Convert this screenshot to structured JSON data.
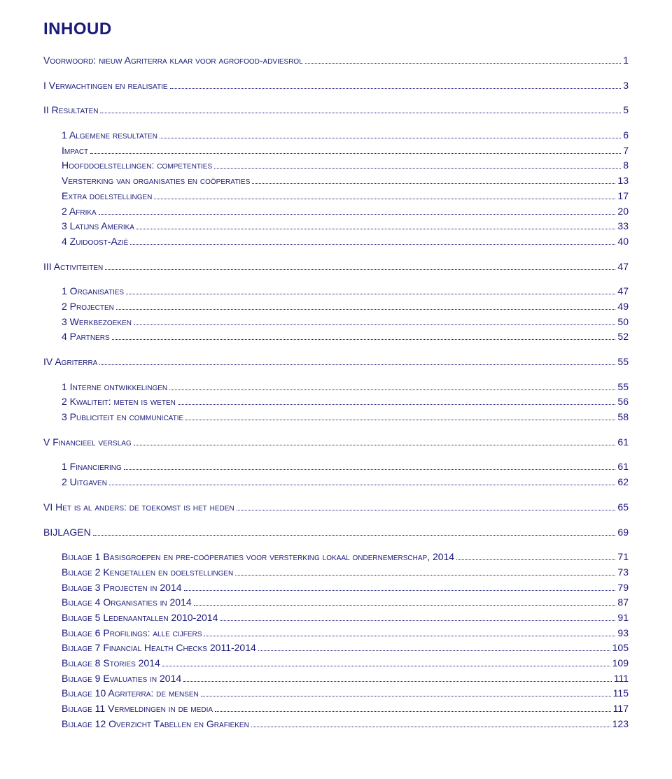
{
  "title": "INHOUD",
  "text_color": "#1a1a7a",
  "leader_color": "#1a1a7a",
  "background_color": "#ffffff",
  "font_family": "Verdana",
  "title_fontsize": 24,
  "entry_fontsize": 14,
  "toc": [
    {
      "level": 0,
      "label": "Voorwoord: nieuw Agriterra klaar voor agrofood-adviesrol",
      "page": "1",
      "group_start": false
    },
    {
      "level": 0,
      "label": "I Verwachtingen en realisatie",
      "page": "3",
      "group_start": false
    },
    {
      "level": 0,
      "label": "II Resultaten",
      "page": "5",
      "group_start": false
    },
    {
      "level": 1,
      "label": "1 Algemene resultaten",
      "page": "6",
      "group_start": true
    },
    {
      "level": 1,
      "label": "Impact",
      "page": "7",
      "group_start": false
    },
    {
      "level": 1,
      "label": "Hoofddoelstellingen: competenties",
      "page": "8",
      "group_start": false
    },
    {
      "level": 1,
      "label": "Versterking van organisaties en coöperaties",
      "page": "13",
      "group_start": false
    },
    {
      "level": 1,
      "label": "Extra doelstellingen",
      "page": "17",
      "group_start": false
    },
    {
      "level": 1,
      "label": "2 Afrika",
      "page": "20",
      "group_start": false
    },
    {
      "level": 1,
      "label": "3 Latijns Amerika",
      "page": "33",
      "group_start": false
    },
    {
      "level": 1,
      "label": "4 Zuidoost-Azië",
      "page": "40",
      "group_start": false
    },
    {
      "level": 0,
      "label": "III Activiteiten",
      "page": "47",
      "group_start": false
    },
    {
      "level": 1,
      "label": "1 Organisaties",
      "page": "47",
      "group_start": true
    },
    {
      "level": 1,
      "label": "2 Projecten",
      "page": "49",
      "group_start": false
    },
    {
      "level": 1,
      "label": "3 Werkbezoeken",
      "page": "50",
      "group_start": false
    },
    {
      "level": 1,
      "label": "4 Partners",
      "page": "52",
      "group_start": false
    },
    {
      "level": 0,
      "label": "IV Agriterra",
      "page": "55",
      "group_start": false
    },
    {
      "level": 1,
      "label": "1 Interne ontwikkelingen",
      "page": "55",
      "group_start": true
    },
    {
      "level": 1,
      "label": "2 Kwaliteit: meten is weten",
      "page": "56",
      "group_start": false
    },
    {
      "level": 1,
      "label": "3 Publiciteit en communicatie",
      "page": "58",
      "group_start": false
    },
    {
      "level": 0,
      "label": "V Financieel verslag",
      "page": "61",
      "group_start": false
    },
    {
      "level": 1,
      "label": "1 Financiering",
      "page": "61",
      "group_start": true
    },
    {
      "level": 1,
      "label": "2 Uitgaven",
      "page": "62",
      "group_start": false
    },
    {
      "level": 0,
      "label": "VI Het is al anders: de toekomst is het heden",
      "page": "65",
      "group_start": false
    },
    {
      "level": 0,
      "label": "BIJLAGEN",
      "page": "69",
      "group_start": false
    },
    {
      "level": 1,
      "label": "Bijlage 1 Basisgroepen en pre-coöperaties voor versterking lokaal ondernemerschap, 2014",
      "page": "71",
      "group_start": true
    },
    {
      "level": 1,
      "label": "Bijlage 2 Kengetallen en doelstellingen",
      "page": "73",
      "group_start": false
    },
    {
      "level": 1,
      "label": "Bijlage 3 Projecten in 2014",
      "page": "79",
      "group_start": false
    },
    {
      "level": 1,
      "label": "Bijlage 4 Organisaties in 2014",
      "page": "87",
      "group_start": false
    },
    {
      "level": 1,
      "label": "Bijlage 5 Ledenaantallen 2010-2014",
      "page": "91",
      "group_start": false
    },
    {
      "level": 1,
      "label": "Bijlage 6 Profilings: alle cijfers",
      "page": "93",
      "group_start": false
    },
    {
      "level": 1,
      "label": "Bijlage 7 Financial Health Checks 2011-2014",
      "page": "105",
      "group_start": false
    },
    {
      "level": 1,
      "label": "Bijlage 8 Stories 2014",
      "page": "109",
      "group_start": false
    },
    {
      "level": 1,
      "label": "Bijlage 9 Evaluaties in 2014",
      "page": "111",
      "group_start": false
    },
    {
      "level": 1,
      "label": "Bijlage 10 Agriterra: de mensen",
      "page": "115",
      "group_start": false
    },
    {
      "level": 1,
      "label": "Bijlage 11 Vermeldingen in de media",
      "page": "117",
      "group_start": false
    },
    {
      "level": 1,
      "label": "Bijlage 12 Overzicht Tabellen en Grafieken",
      "page": "123",
      "group_start": false
    }
  ]
}
